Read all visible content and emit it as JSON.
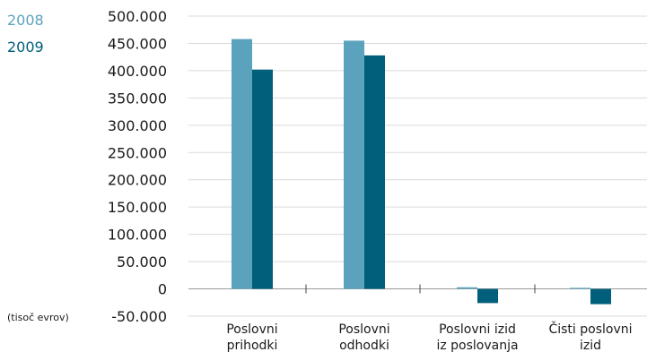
{
  "chart_data": {
    "type": "bar",
    "unit_label": "(tisoč evrov)",
    "categories": [
      [
        "Poslovni",
        "prihodki"
      ],
      [
        "Poslovni",
        "odhodki"
      ],
      [
        "Poslovni izid",
        "iz poslovanja"
      ],
      [
        "Čisti poslovni",
        "izid"
      ]
    ],
    "series": [
      {
        "name": "2008",
        "color": "#5ba3bd",
        "values": [
          458000,
          455000,
          3000,
          2000
        ]
      },
      {
        "name": "2009",
        "color": "#005f7a",
        "values": [
          402000,
          428000,
          -26000,
          -28000
        ]
      }
    ],
    "yticks": [
      "500.000",
      "450.000",
      "400.000",
      "350.000",
      "300.000",
      "250.000",
      "200.000",
      "150.000",
      "100.000",
      "50.000",
      "0",
      "-50.000"
    ],
    "ylim": [
      -50000,
      500000
    ],
    "grid": true,
    "legend_position": "top-left"
  }
}
